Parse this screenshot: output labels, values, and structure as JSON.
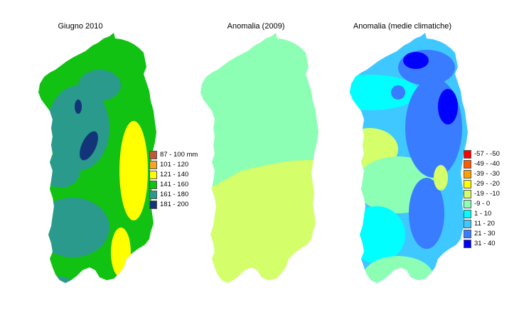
{
  "panels": [
    {
      "title": "Giugno 2010"
    },
    {
      "title": "Anomalia (2009)"
    },
    {
      "title": "Anomalia (medie climatiche)"
    }
  ],
  "legend_rain": [
    {
      "label": "87 - 100 mm",
      "color": "#c0583a"
    },
    {
      "label": "101 - 120",
      "color": "#f5a623"
    },
    {
      "label": "121 - 140",
      "color": "#ffff00"
    },
    {
      "label": "141 - 160",
      "color": "#12c212"
    },
    {
      "label": "161 - 180",
      "color": "#2a9a8c"
    },
    {
      "label": "181 - 200",
      "color": "#12357a"
    }
  ],
  "legend_anomaly": [
    {
      "label": "-57 - -50",
      "color": "#ff0000"
    },
    {
      "label": "-49 - -40",
      "color": "#ff5a00"
    },
    {
      "label": "-39 - -30",
      "color": "#ffa000"
    },
    {
      "label": "-29 - -20",
      "color": "#ffff00"
    },
    {
      "label": "-19 - -10",
      "color": "#d4ff6a"
    },
    {
      "label": "-9 - 0",
      "color": "#8cffb4"
    },
    {
      "label": "1 - 10",
      "color": "#00ffff"
    },
    {
      "label": "11 - 20",
      "color": "#3fc8ff"
    },
    {
      "label": "21 - 30",
      "color": "#3a7cff"
    },
    {
      "label": "31 - 40",
      "color": "#0000ff"
    }
  ]
}
